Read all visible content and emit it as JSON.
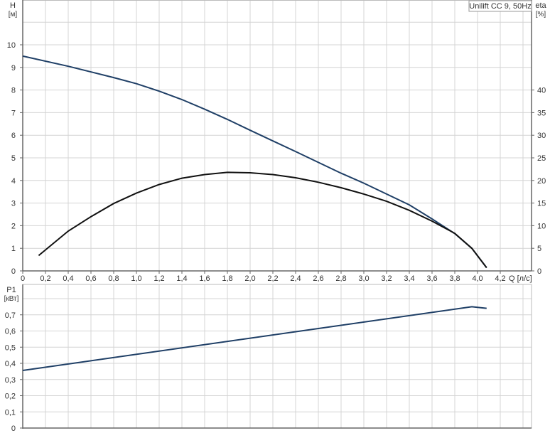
{
  "chart_data": [
    {
      "type": "line",
      "title": "Unilift CC 9, 50Hz",
      "xlabel": "Q [л/с]",
      "ylabel": "H [м]",
      "ylabel_right": "eta [%]",
      "xlim": [
        0,
        4.4
      ],
      "ylim": [
        0,
        12
      ],
      "ylim_right": [
        0,
        60
      ],
      "grid": true,
      "x_ticks": [
        "0",
        "0,2",
        "0,4",
        "0,6",
        "0,8",
        "1,0",
        "1,2",
        "1,4",
        "1,6",
        "1,8",
        "2,0",
        "2,2",
        "2,4",
        "2,6",
        "2,8",
        "3,0",
        "3,2",
        "3,4",
        "3,6",
        "3,8",
        "4,0",
        "4,2"
      ],
      "y_ticks": [
        "0",
        "1",
        "2",
        "3",
        "4",
        "5",
        "6",
        "7",
        "8",
        "9",
        "10"
      ],
      "y_ticks_right": [
        "0",
        "5",
        "10",
        "15",
        "20",
        "25",
        "30",
        "35",
        "40"
      ],
      "series": [
        {
          "axis": "left",
          "color": "#1f3f66",
          "x": [
            0,
            0.4,
            0.8,
            1.0,
            1.2,
            1.4,
            1.6,
            1.8,
            2.0,
            2.2,
            2.4,
            2.6,
            2.8,
            3.0,
            3.2,
            3.4,
            3.6,
            3.8,
            3.95,
            4.08
          ],
          "y": [
            9.5,
            9.05,
            8.55,
            8.28,
            7.95,
            7.58,
            7.15,
            6.7,
            6.22,
            5.75,
            5.28,
            4.8,
            4.32,
            3.88,
            3.4,
            2.92,
            2.3,
            1.65,
            1.0,
            0.14
          ]
        },
        {
          "axis": "right",
          "color": "#111111",
          "x": [
            0.14,
            0.4,
            0.6,
            0.8,
            1.0,
            1.2,
            1.4,
            1.6,
            1.8,
            2.0,
            2.2,
            2.4,
            2.6,
            2.8,
            3.0,
            3.2,
            3.4,
            3.6,
            3.8,
            3.95,
            4.08
          ],
          "y": [
            3.4,
            8.8,
            12.0,
            14.9,
            17.2,
            19.1,
            20.5,
            21.3,
            21.8,
            21.7,
            21.3,
            20.6,
            19.6,
            18.4,
            17.0,
            15.4,
            13.4,
            11.0,
            8.3,
            5.0,
            0.7
          ]
        }
      ]
    },
    {
      "type": "line",
      "ylabel": "P1 [кВт]",
      "xlim": [
        0,
        4.4
      ],
      "ylim": [
        0,
        0.88
      ],
      "grid": true,
      "y_ticks": [
        "0",
        "0,1",
        "0,2",
        "0,3",
        "0,4",
        "0,5",
        "0,6",
        "0,7"
      ],
      "series": [
        {
          "color": "#1f3f66",
          "x": [
            0,
            3.95,
            4.08
          ],
          "y": [
            0.356,
            0.75,
            0.74
          ]
        }
      ]
    }
  ]
}
